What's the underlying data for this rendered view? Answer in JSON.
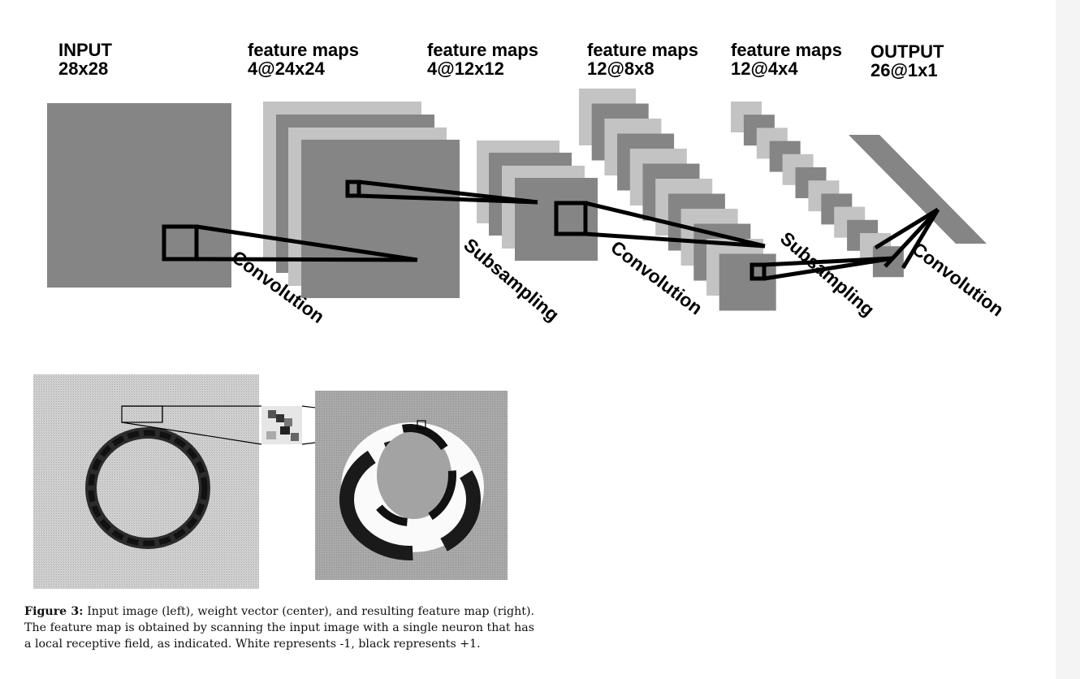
{
  "layers": [
    {
      "title": "INPUT",
      "size": "28x28"
    },
    {
      "title": "feature maps",
      "size": "4@24x24"
    },
    {
      "title": "feature maps",
      "size": "4@12x12"
    },
    {
      "title": "feature maps",
      "size": "12@8x8"
    },
    {
      "title": "feature maps",
      "size": "12@4x4"
    },
    {
      "title": "OUTPUT",
      "size": "26@1x1"
    }
  ],
  "operations": [
    "Convolution",
    "Subsampling",
    "Convolution",
    "Subsampling",
    "Convolution"
  ],
  "caption": {
    "label": "Figure 3:",
    "text": "Input image (left), weight vector (center), and resulting feature map (right). The feature map is obtained by scanning the input image with a single neuron that has a local receptive field, as indicated. White represents -1, black represents +1."
  },
  "colors": {
    "map_dark": "#858585",
    "map_light": "#c3c3c3",
    "line": "#000000",
    "background": "#ffffff"
  }
}
